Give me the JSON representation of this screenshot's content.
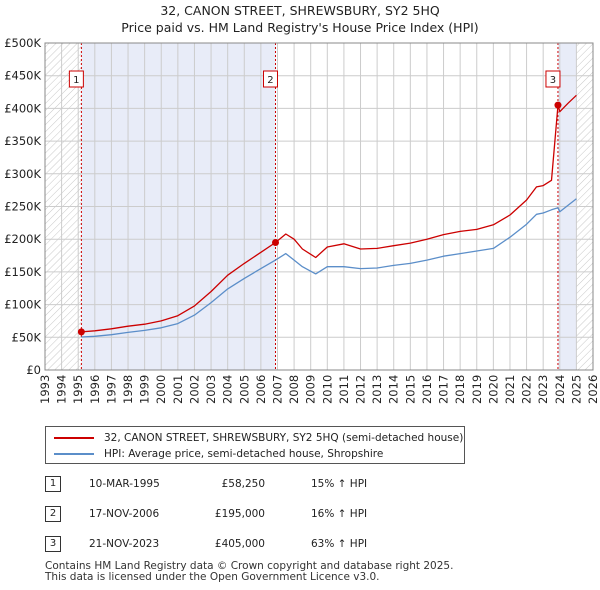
{
  "chart_data": {
    "type": "line",
    "title": "32, CANON STREET, SHREWSBURY, SY2 5HQ",
    "subtitle": "Price paid vs. HM Land Registry's House Price Index (HPI)",
    "xlabel": "",
    "ylabel": "",
    "xlim": [
      1993,
      2026
    ],
    "ylim": [
      0,
      500000
    ],
    "y_ticks": [
      0,
      50000,
      100000,
      150000,
      200000,
      250000,
      300000,
      350000,
      400000,
      450000,
      500000
    ],
    "y_tick_labels": [
      "£0",
      "£50K",
      "£100K",
      "£150K",
      "£200K",
      "£250K",
      "£300K",
      "£350K",
      "£400K",
      "£450K",
      "£500K"
    ],
    "x_ticks": [
      1993,
      1994,
      1995,
      1996,
      1997,
      1998,
      1999,
      2000,
      2001,
      2002,
      2003,
      2004,
      2005,
      2006,
      2007,
      2008,
      2009,
      2010,
      2011,
      2012,
      2013,
      2014,
      2015,
      2016,
      2017,
      2018,
      2019,
      2020,
      2021,
      2022,
      2023,
      2024,
      2025,
      2026
    ],
    "x_tick_labels": [
      "1993",
      "1994",
      "1995",
      "1996",
      "1997",
      "1998",
      "1999",
      "2000",
      "2001",
      "2002",
      "2003",
      "2004",
      "2005",
      "2006",
      "2007",
      "2008",
      "2009",
      "2010",
      "2011",
      "2012",
      "2013",
      "2014",
      "2015",
      "2016",
      "2017",
      "2018",
      "2019",
      "2020",
      "2021",
      "2022",
      "2023",
      "2024",
      "2025",
      "2026"
    ],
    "grid": true,
    "hatched_regions": [
      [
        1993,
        1995.19
      ],
      [
        2025.0,
        2026
      ]
    ],
    "shaded_regions": [
      [
        1995.19,
        2006.88
      ],
      [
        2023.89,
        2025.0
      ]
    ],
    "series": [
      {
        "name": "32, CANON STREET, SHREWSBURY, SY2 5HQ (semi-detached house)",
        "color": "#cc0000",
        "x": [
          1995.19,
          1996,
          1997,
          1998,
          1999,
          2000,
          2001,
          2002,
          2003,
          2004,
          2005,
          2006,
          2006.88,
          2007.5,
          2008,
          2008.5,
          2009.3,
          2010,
          2011,
          2012,
          2013,
          2014,
          2015,
          2016,
          2017,
          2018,
          2019,
          2020,
          2021,
          2022,
          2022.6,
          2023,
          2023.5,
          2023.89,
          2024,
          2024.5,
          2025
        ],
        "values": [
          58250,
          60000,
          63000,
          67000,
          70000,
          75000,
          83000,
          98000,
          120000,
          145000,
          163000,
          180000,
          195000,
          208000,
          200000,
          185000,
          172000,
          188000,
          193000,
          185000,
          186000,
          190000,
          194000,
          200000,
          207000,
          212000,
          215000,
          222000,
          237000,
          260000,
          280000,
          282000,
          290000,
          405000,
          395000,
          408000,
          420000
        ]
      },
      {
        "name": "HPI: Average price, semi-detached house, Shropshire",
        "color": "#5b8ec9",
        "x": [
          1995.19,
          1996,
          1997,
          1998,
          1999,
          2000,
          2001,
          2002,
          2003,
          2004,
          2005,
          2006,
          2006.88,
          2007.5,
          2008,
          2008.5,
          2009.3,
          2010,
          2011,
          2012,
          2013,
          2014,
          2015,
          2016,
          2017,
          2018,
          2019,
          2020,
          2021,
          2022,
          2022.6,
          2023,
          2023.5,
          2023.89,
          2024,
          2024.5,
          2025
        ],
        "values": [
          50500,
          51500,
          54000,
          57500,
          60500,
          64500,
          71000,
          84000,
          103000,
          124000,
          140000,
          155000,
          168000,
          178000,
          168000,
          158000,
          147000,
          158000,
          158000,
          155000,
          156000,
          160000,
          163000,
          168000,
          174000,
          178000,
          182000,
          186000,
          203000,
          223000,
          238000,
          240000,
          245000,
          248000,
          242000,
          252000,
          262000
        ]
      }
    ],
    "sales": [
      {
        "marker": "1",
        "x": 1995.19,
        "value": 58250
      },
      {
        "marker": "2",
        "x": 2006.88,
        "value": 195000
      },
      {
        "marker": "3",
        "x": 2023.89,
        "value": 405000
      }
    ]
  },
  "legend": {
    "property_label": "32, CANON STREET, SHREWSBURY, SY2 5HQ (semi-detached house)",
    "hpi_label": "HPI: Average price, semi-detached house, Shropshire"
  },
  "sales_table": [
    {
      "marker": "1",
      "date": "10-MAR-1995",
      "price": "£58,250",
      "hpi_change": "15% ↑ HPI"
    },
    {
      "marker": "2",
      "date": "17-NOV-2006",
      "price": "£195,000",
      "hpi_change": "16% ↑ HPI"
    },
    {
      "marker": "3",
      "date": "21-NOV-2023",
      "price": "£405,000",
      "hpi_change": "63% ↑ HPI"
    }
  ],
  "footer": {
    "line1": "Contains HM Land Registry data © Crown copyright and database right 2025.",
    "line2": "This data is licensed under the Open Government Licence v3.0."
  },
  "colors": {
    "property_line": "#cc0000",
    "hpi_line": "#5b8ec9",
    "shade": "#e8ecf8",
    "grid": "#cccccc",
    "marker_line": "#cc0000"
  }
}
